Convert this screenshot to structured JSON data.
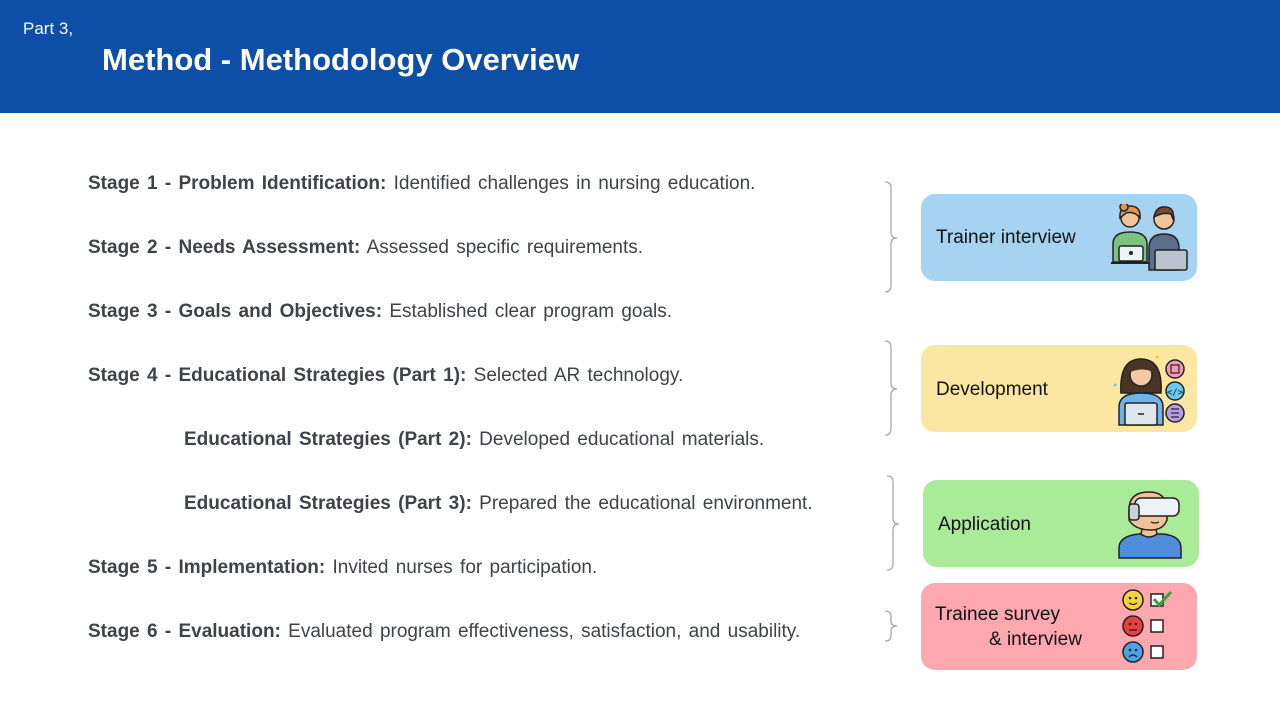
{
  "header": {
    "part": "Part 3,",
    "title": "Method - Methodology Overview"
  },
  "stages": [
    {
      "label": "Stage 1 - Problem Identification:",
      "desc": " Identified challenges in nursing education."
    },
    {
      "label": "Stage 2 - Needs Assessment:",
      "desc": " Assessed specific requirements."
    },
    {
      "label": "Stage 3 - Goals and Objectives:",
      "desc": " Established clear program goals."
    },
    {
      "label": "Stage 4 - Educational Strategies (Part 1):",
      "desc": " Selected AR technology."
    },
    {
      "label": "Educational Strategies (Part 2):",
      "desc": " Developed educational materials."
    },
    {
      "label": "Educational Strategies (Part 3):",
      "desc": " Prepared the educational environment."
    },
    {
      "label": "Stage 5 - Implementation:",
      "desc": " Invited nurses for participation."
    },
    {
      "label": "Stage 6 - Evaluation:",
      "desc": " Evaluated program effectiveness, satisfaction, and usability."
    }
  ],
  "boxes": [
    {
      "label": "Trainer interview",
      "color": "#a6d4f0",
      "icon": "interview-icon"
    },
    {
      "label": "Development",
      "color": "#fbe7a1",
      "icon": "developer-icon"
    },
    {
      "label": "Application",
      "color": "#a9eb99",
      "icon": "vr-headset-icon"
    },
    {
      "label_line1": "Trainee survey",
      "label_line2": "& interview",
      "color": "#fda7ae",
      "icon": "survey-icon"
    }
  ]
}
